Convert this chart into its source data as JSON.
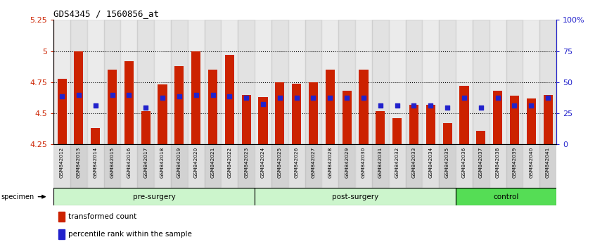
{
  "title": "GDS4345 / 1560856_at",
  "samples": [
    "GSM842012",
    "GSM842013",
    "GSM842014",
    "GSM842015",
    "GSM842016",
    "GSM842017",
    "GSM842018",
    "GSM842019",
    "GSM842020",
    "GSM842021",
    "GSM842022",
    "GSM842023",
    "GSM842024",
    "GSM842025",
    "GSM842026",
    "GSM842027",
    "GSM842028",
    "GSM842029",
    "GSM842030",
    "GSM842031",
    "GSM842032",
    "GSM842033",
    "GSM842034",
    "GSM842035",
    "GSM842036",
    "GSM842037",
    "GSM842038",
    "GSM842039",
    "GSM842040",
    "GSM842041"
  ],
  "bar_heights": [
    4.78,
    5.0,
    4.38,
    4.85,
    4.92,
    4.52,
    4.73,
    4.88,
    5.0,
    4.85,
    4.97,
    4.65,
    4.63,
    4.75,
    4.74,
    4.75,
    4.85,
    4.68,
    4.85,
    4.52,
    4.46,
    4.57,
    4.57,
    4.42,
    4.72,
    4.36,
    4.68,
    4.64,
    4.62,
    4.65
  ],
  "blue_marker_values": [
    4.635,
    4.645,
    4.565,
    4.645,
    4.645,
    4.545,
    4.625,
    4.635,
    4.645,
    4.645,
    4.635,
    4.625,
    4.575,
    4.625,
    4.625,
    4.625,
    4.625,
    4.625,
    4.625,
    4.565,
    4.565,
    4.565,
    4.565,
    4.545,
    4.625,
    4.545,
    4.625,
    4.565,
    4.565,
    4.625
  ],
  "ymin": 4.25,
  "ymax": 5.25,
  "yticks": [
    4.25,
    4.5,
    4.75,
    5.0,
    5.25
  ],
  "ytick_labels": [
    "4.25",
    "4.5",
    "4.75",
    "5",
    "5.25"
  ],
  "right_yticks": [
    0,
    25,
    50,
    75,
    100
  ],
  "right_ytick_labels": [
    "0",
    "25",
    "50",
    "75",
    "100%"
  ],
  "bar_color": "#cc2200",
  "blue_color": "#2222cc",
  "grid_color": "black",
  "bg_color": "white",
  "left_label_color": "#cc2200",
  "right_label_color": "#2222cc",
  "group_labels": [
    "pre-surgery",
    "post-surgery",
    "control"
  ],
  "group_starts": [
    0,
    12,
    24
  ],
  "group_ends": [
    12,
    24,
    30
  ],
  "group_colors": [
    "#ccf5cc",
    "#ccf5cc",
    "#55dd55"
  ],
  "xtick_bg_even": "#d4d4d4",
  "xtick_bg_odd": "#c0c0c0"
}
